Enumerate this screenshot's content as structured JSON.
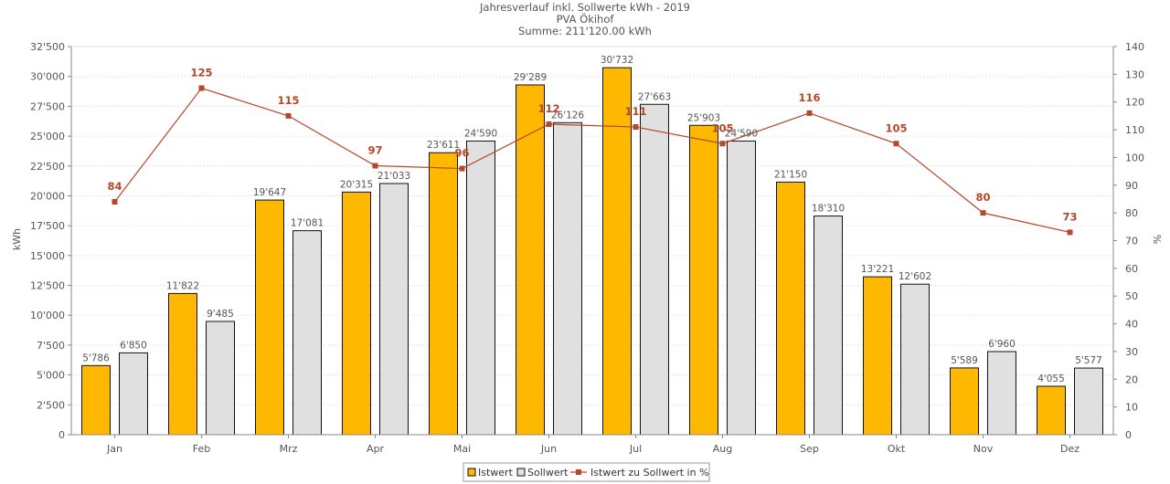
{
  "chart_data": {
    "type": "bar",
    "title": "Jahresverlauf inkl. Sollwerte kWh - 2019",
    "subtitle": "PVA Ökihof",
    "summary": "Summe: 211'120.00 kWh",
    "categories": [
      "Jan",
      "Feb",
      "Mrz",
      "Apr",
      "Mai",
      "Jun",
      "Jul",
      "Aug",
      "Sep",
      "Okt",
      "Nov",
      "Dez"
    ],
    "series": [
      {
        "name": "Istwert",
        "type": "bar",
        "color": "#FFB800",
        "values": [
          5786,
          11822,
          19647,
          20315,
          23611,
          29289,
          30732,
          25903,
          21150,
          13221,
          5589,
          4055
        ],
        "labels": [
          "5'786",
          "11'822",
          "19'647",
          "20'315",
          "23'611",
          "29'289",
          "30'732",
          "25'903",
          "21'150",
          "13'221",
          "5'589",
          "4'055"
        ]
      },
      {
        "name": "Sollwert",
        "type": "bar",
        "color": "#E0E0E0",
        "values": [
          6850,
          9485,
          17081,
          21033,
          24590,
          26126,
          27663,
          24590,
          18310,
          12602,
          6960,
          5577
        ],
        "labels": [
          "6'850",
          "9'485",
          "17'081",
          "21'033",
          "24'590",
          "26'126",
          "27'663",
          "24'590",
          "18'310",
          "12'602",
          "6'960",
          "5'577"
        ]
      },
      {
        "name": "Istwert zu Sollwert in %",
        "type": "line",
        "axis": "right",
        "color": "#B5472A",
        "values": [
          84,
          125,
          115,
          97,
          96,
          112,
          111,
          105,
          116,
          105,
          80,
          73
        ],
        "labels": [
          "84",
          "125",
          "115",
          "97",
          "96",
          "112",
          "111",
          "105",
          "116",
          "105",
          "80",
          "73"
        ]
      }
    ],
    "ylabel": "kWh",
    "y2label": "%",
    "ylim": [
      0,
      32500
    ],
    "y2lim": [
      0,
      140
    ],
    "yticks": [
      0,
      2500,
      5000,
      7500,
      10000,
      12500,
      15000,
      17500,
      20000,
      22500,
      25000,
      27500,
      30000,
      32500
    ],
    "yticklabels": [
      "0",
      "2'500",
      "5'000",
      "7'500",
      "10'000",
      "12'500",
      "15'000",
      "17'500",
      "20'000",
      "22'500",
      "25'000",
      "27'500",
      "30'000",
      "32'500"
    ],
    "y2ticks": [
      0,
      10,
      20,
      30,
      40,
      50,
      60,
      70,
      80,
      90,
      100,
      110,
      120,
      130,
      140
    ],
    "grid": true,
    "legend": "bottom"
  }
}
